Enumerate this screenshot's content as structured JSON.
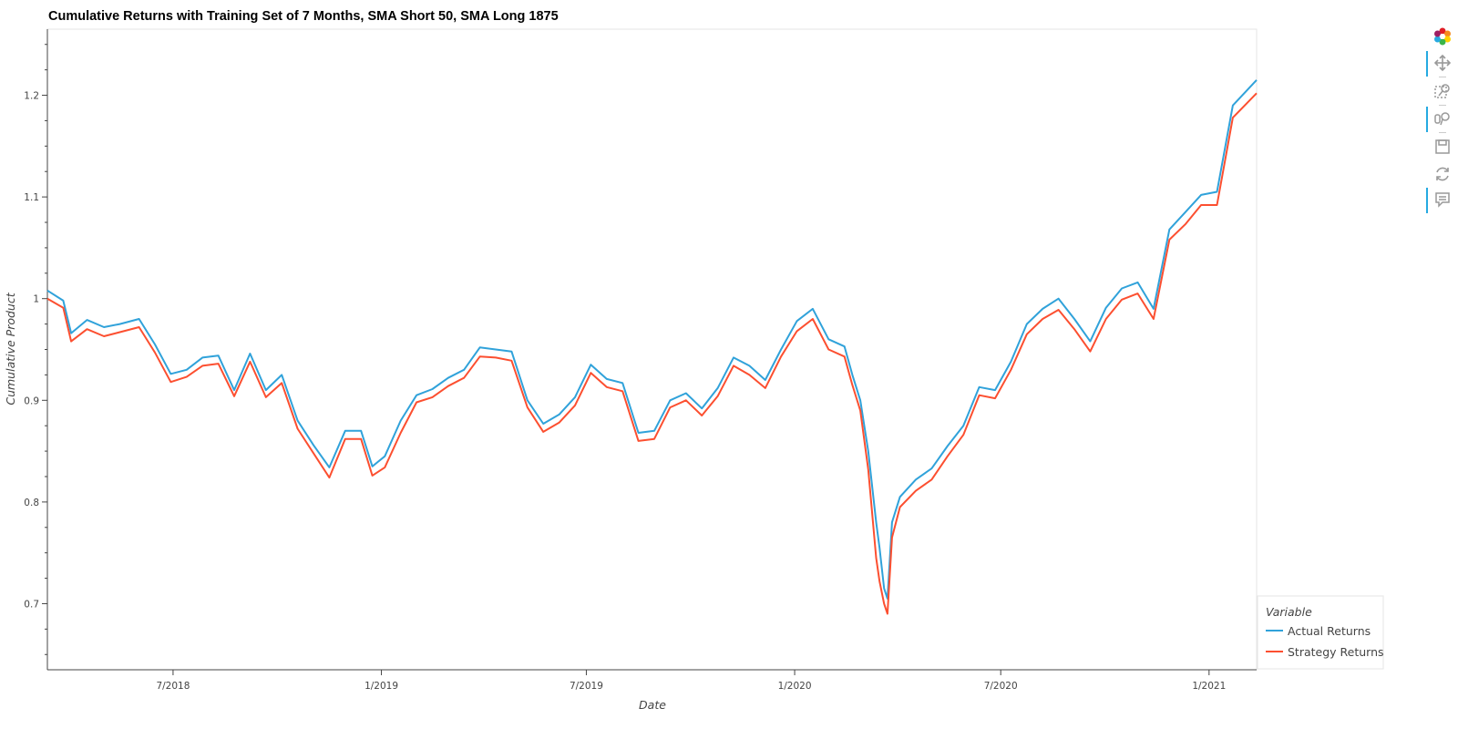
{
  "chart_data": {
    "type": "line",
    "title": "Cumulative Returns with Training Set of 7 Months, SMA Short 50, SMA Long 1875",
    "xlabel": "Date",
    "ylabel": "Cumulative Product",
    "x_ticks": [
      "7/2018",
      "1/2019",
      "7/2019",
      "1/2020",
      "7/2020",
      "1/2021"
    ],
    "y_ticks": [
      "0.7",
      "0.8",
      "0.9",
      "1",
      "1.1",
      "1.2"
    ],
    "ylim": [
      0.635,
      1.265
    ],
    "xlim": [
      "2018-03-12",
      "2021-02-12"
    ],
    "legend": {
      "title": "Variable",
      "position": "bottom-right"
    },
    "grid": false,
    "x": [
      "2018-03-12",
      "2018-03-26",
      "2018-04-02",
      "2018-04-16",
      "2018-05-01",
      "2018-05-15",
      "2018-06-01",
      "2018-06-15",
      "2018-06-29",
      "2018-07-13",
      "2018-07-27",
      "2018-08-10",
      "2018-08-24",
      "2018-09-07",
      "2018-09-21",
      "2018-10-05",
      "2018-10-19",
      "2018-11-02",
      "2018-11-16",
      "2018-11-30",
      "2018-12-14",
      "2018-12-24",
      "2019-01-04",
      "2019-01-18",
      "2019-02-01",
      "2019-02-15",
      "2019-03-01",
      "2019-03-15",
      "2019-03-29",
      "2019-04-12",
      "2019-04-26",
      "2019-05-10",
      "2019-05-24",
      "2019-06-07",
      "2019-06-21",
      "2019-07-05",
      "2019-07-19",
      "2019-08-02",
      "2019-08-16",
      "2019-08-30",
      "2019-09-13",
      "2019-09-27",
      "2019-10-11",
      "2019-10-25",
      "2019-11-08",
      "2019-11-22",
      "2019-12-06",
      "2019-12-20",
      "2020-01-03",
      "2020-01-17",
      "2020-01-31",
      "2020-02-14",
      "2020-02-21",
      "2020-02-28",
      "2020-03-06",
      "2020-03-13",
      "2020-03-16",
      "2020-03-20",
      "2020-03-23",
      "2020-03-27",
      "2020-04-03",
      "2020-04-17",
      "2020-05-01",
      "2020-05-15",
      "2020-05-29",
      "2020-06-12",
      "2020-06-26",
      "2020-07-10",
      "2020-07-24",
      "2020-08-07",
      "2020-08-21",
      "2020-09-04",
      "2020-09-18",
      "2020-10-02",
      "2020-10-16",
      "2020-10-30",
      "2020-11-13",
      "2020-11-27",
      "2020-12-11",
      "2020-12-25",
      "2021-01-08",
      "2021-01-22",
      "2021-02-12"
    ],
    "series": [
      {
        "name": "Actual Returns",
        "color": "#30a2da",
        "values": [
          1.008,
          0.998,
          0.966,
          0.979,
          0.972,
          0.975,
          0.98,
          0.955,
          0.926,
          0.93,
          0.942,
          0.944,
          0.91,
          0.946,
          0.91,
          0.925,
          0.88,
          0.856,
          0.834,
          0.87,
          0.87,
          0.835,
          0.845,
          0.88,
          0.905,
          0.911,
          0.922,
          0.93,
          0.952,
          0.95,
          0.948,
          0.9,
          0.877,
          0.886,
          0.903,
          0.935,
          0.921,
          0.917,
          0.868,
          0.87,
          0.9,
          0.907,
          0.892,
          0.912,
          0.942,
          0.934,
          0.92,
          0.95,
          0.978,
          0.99,
          0.96,
          0.953,
          0.925,
          0.9,
          0.85,
          0.78,
          0.755,
          0.715,
          0.705,
          0.78,
          0.805,
          0.822,
          0.833,
          0.855,
          0.875,
          0.913,
          0.91,
          0.938,
          0.975,
          0.99,
          1.0,
          0.98,
          0.958,
          0.991,
          1.01,
          1.016,
          0.99,
          1.068,
          1.085,
          1.102,
          1.105,
          1.19,
          1.215
        ]
      },
      {
        "name": "Strategy Returns",
        "color": "#fc4f30",
        "values": [
          1.0,
          0.991,
          0.958,
          0.97,
          0.963,
          0.967,
          0.972,
          0.947,
          0.918,
          0.923,
          0.934,
          0.936,
          0.904,
          0.938,
          0.903,
          0.917,
          0.872,
          0.848,
          0.824,
          0.862,
          0.862,
          0.826,
          0.834,
          0.868,
          0.898,
          0.903,
          0.914,
          0.922,
          0.943,
          0.942,
          0.939,
          0.893,
          0.869,
          0.878,
          0.895,
          0.927,
          0.913,
          0.909,
          0.86,
          0.862,
          0.893,
          0.9,
          0.885,
          0.904,
          0.934,
          0.925,
          0.912,
          0.943,
          0.968,
          0.98,
          0.95,
          0.943,
          0.915,
          0.89,
          0.832,
          0.745,
          0.722,
          0.7,
          0.69,
          0.765,
          0.795,
          0.811,
          0.822,
          0.845,
          0.866,
          0.905,
          0.902,
          0.93,
          0.965,
          0.98,
          0.989,
          0.97,
          0.948,
          0.98,
          0.999,
          1.005,
          0.98,
          1.058,
          1.073,
          1.092,
          1.092,
          1.178,
          1.202
        ]
      }
    ]
  },
  "toolbar": {
    "tools": [
      "bokeh-logo-icon",
      "pan-icon",
      "box-zoom-icon",
      "wheel-zoom-icon",
      "save-icon",
      "reset-icon",
      "hover-icon"
    ]
  }
}
